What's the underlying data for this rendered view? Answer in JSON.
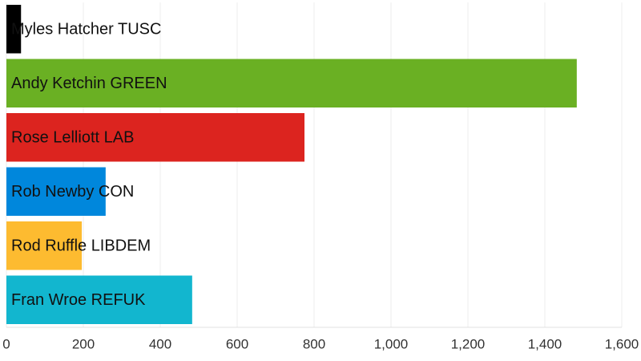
{
  "chart_data": {
    "type": "bar",
    "orientation": "horizontal",
    "categories": [
      "Myles Hatcher TUSC",
      "Andy Ketchin GREEN",
      "Rose Lelliott LAB",
      "Rob Newby CON",
      "Rod Ruffle LIBDEM",
      "Fran Wroe REFUK"
    ],
    "values": [
      38,
      1483,
      775,
      258,
      196,
      483
    ],
    "colors": [
      "#000000",
      "#6ab023",
      "#dc241f",
      "#0087dc",
      "#fdbb30",
      "#12b6cf"
    ],
    "xlim": [
      0,
      1600
    ],
    "xticks": [
      0,
      200,
      400,
      600,
      800,
      {
        "value": 1000,
        "label": "1,000"
      },
      {
        "value": 1200,
        "label": "1,200"
      },
      {
        "value": 1400,
        "label": "1,400"
      },
      {
        "value": 1600,
        "label": "1,600"
      }
    ],
    "grid": true
  }
}
